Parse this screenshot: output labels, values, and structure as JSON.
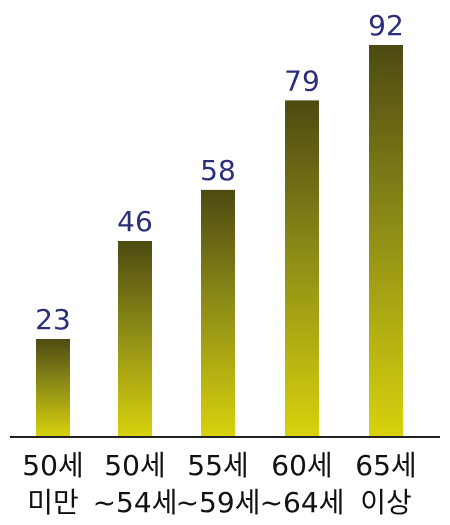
{
  "chart_data": {
    "type": "bar",
    "categories": [
      [
        "50세",
        "미만"
      ],
      [
        "50세",
        "~54세"
      ],
      [
        "55세",
        "~59세"
      ],
      [
        "60세",
        "~64세"
      ],
      [
        "65세",
        "이상"
      ]
    ],
    "values": [
      23,
      46,
      58,
      79,
      92
    ],
    "title": "",
    "xlabel": "",
    "ylabel": "",
    "ylim": [
      0,
      92
    ],
    "grid": false,
    "legend": "none",
    "colors": {
      "bar_top": "#4d4a12",
      "bar_mid": "#8b8a17",
      "bar_bottom": "#d8d20d",
      "value_text": "#2b2f7b",
      "axis": "#222222",
      "category_text": "#111111"
    }
  }
}
